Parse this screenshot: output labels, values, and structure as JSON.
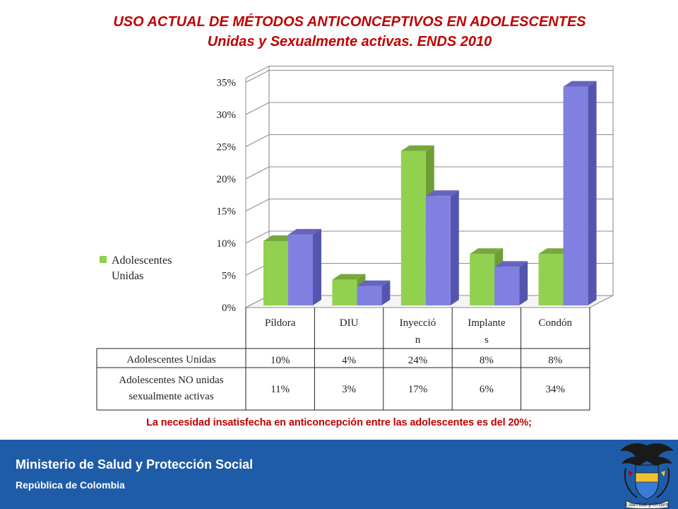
{
  "title_line1": "USO ACTUAL DE MÉTODOS ANTICONCEPTIVOS EN ADOLESCENTES",
  "title_line2": "Unidas y Sexualmente activas. ENDS 2010",
  "note": "La necesidad insatisfecha en anticoncepción entre las adolescentes es del 20%;",
  "footer": {
    "ministry": "Ministerio de Salud y Protección Social",
    "republic": "República de Colombia",
    "seal_icon": "colombia-coat-of-arms-icon",
    "seal_motto": "Libertad y Orden"
  },
  "chart_data": {
    "type": "bar",
    "categories": [
      [
        "Píldora"
      ],
      [
        "DIU"
      ],
      [
        "Inyecció",
        "n"
      ],
      [
        "Implante",
        "s"
      ],
      [
        "Condón"
      ]
    ],
    "series": [
      {
        "name": [
          "Adolescentes Unidas"
        ],
        "values": [
          10,
          4,
          24,
          8,
          8
        ],
        "labels": [
          "10%",
          "4%",
          "24%",
          "8%",
          "8%"
        ],
        "color": "#92d050",
        "side": "#6f9e35",
        "top": "#77a83d"
      },
      {
        "name": [
          "Adolescentes NO unidas",
          "sexualmente activas"
        ],
        "values": [
          11,
          3,
          17,
          6,
          34
        ],
        "labels": [
          "11%",
          "3%",
          "17%",
          "6%",
          "34%"
        ],
        "color": "#8080e0",
        "side": "#5555b0",
        "top": "#6565c0"
      }
    ],
    "legend": {
      "label_lines": [
        "Adolescentes",
        "Unidas"
      ],
      "position": "left"
    },
    "y_ticks": [
      "0%",
      "5%",
      "10%",
      "15%",
      "20%",
      "25%",
      "30%",
      "35%"
    ],
    "ylim": [
      0,
      35
    ],
    "grid": true,
    "data_table": true
  }
}
